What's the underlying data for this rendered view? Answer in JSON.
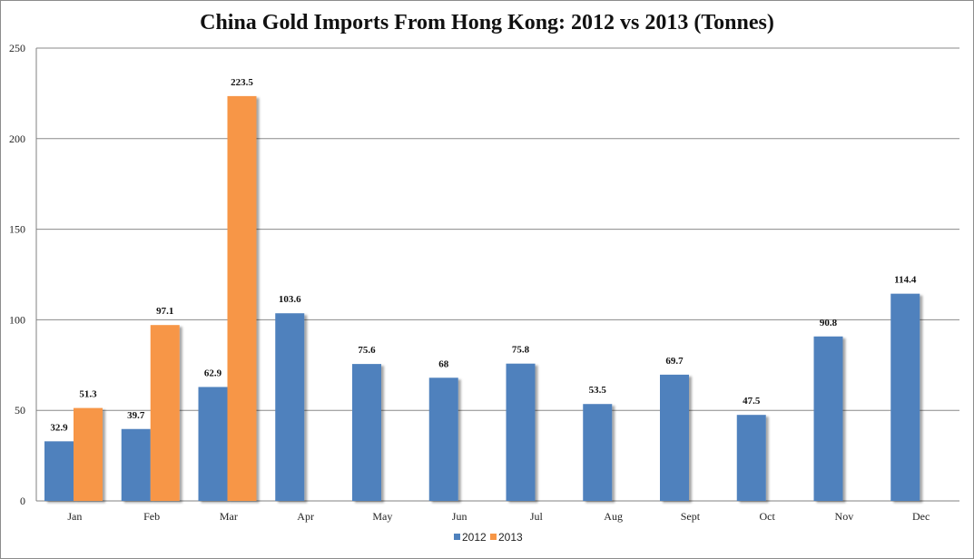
{
  "chart_data": {
    "type": "bar",
    "title": "China Gold Imports From Hong Kong: 2012 vs 2013 (Tonnes)",
    "categories": [
      "Jan",
      "Feb",
      "Mar",
      "Apr",
      "May",
      "Jun",
      "Jul",
      "Aug",
      "Sept",
      "Oct",
      "Nov",
      "Dec"
    ],
    "series": [
      {
        "name": "2012",
        "color": "#4f81bd",
        "values": [
          32.9,
          39.7,
          62.9,
          103.6,
          75.6,
          68,
          75.8,
          53.5,
          69.7,
          47.5,
          90.8,
          114.4
        ],
        "labels": [
          "32.9",
          "39.7",
          "62.9",
          "103.6",
          "75.6",
          "68",
          "75.8",
          "53.5",
          "69.7",
          "47.5",
          "90.8",
          "114.4"
        ]
      },
      {
        "name": "2013",
        "color": "#f79646",
        "values": [
          51.3,
          97.1,
          223.5,
          null,
          null,
          null,
          null,
          null,
          null,
          null,
          null,
          null
        ],
        "labels": [
          "51.3",
          "97.1",
          "223.5",
          "",
          "",
          "",
          "",
          "",
          "",
          "",
          "",
          ""
        ]
      }
    ],
    "ylim": [
      0,
      250
    ],
    "yticks": [
      0,
      50,
      100,
      150,
      200,
      250
    ],
    "xlabel": "",
    "ylabel": "",
    "grid": true,
    "legend": "bottom"
  }
}
